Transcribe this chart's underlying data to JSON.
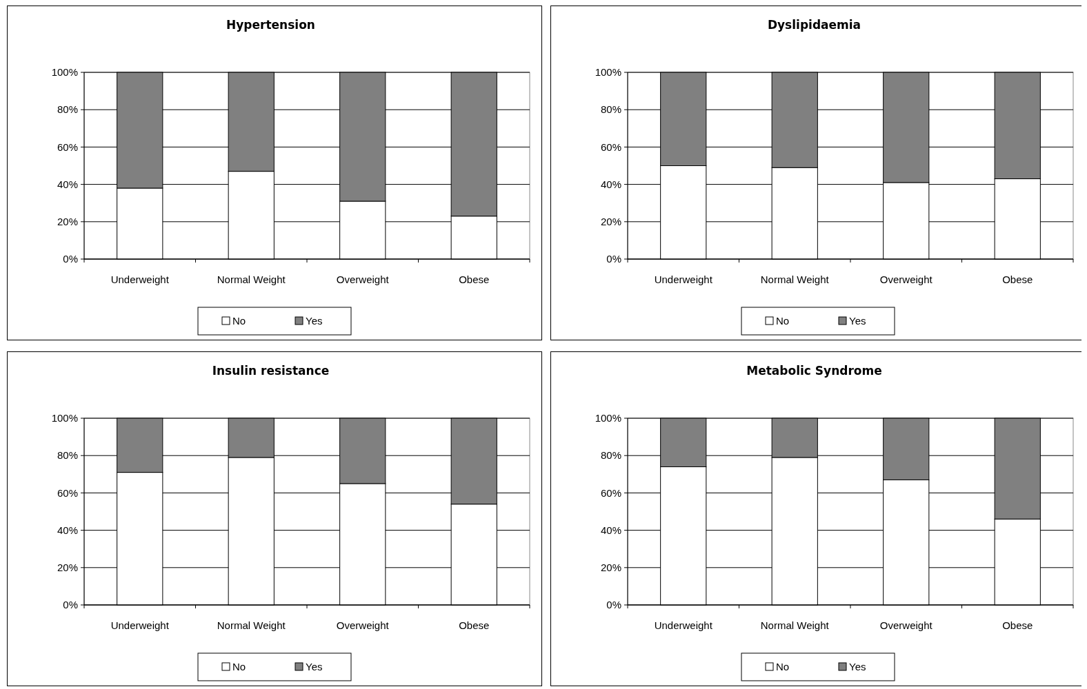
{
  "chart_data": [
    {
      "type": "bar",
      "title": "Hypertension",
      "categories": [
        "Underweight",
        "Normal Weight",
        "Overweight",
        "Obese"
      ],
      "stacked": true,
      "grid": "y",
      "legend": "bottom",
      "ylim": [
        0,
        100
      ],
      "yticks": [
        {
          "value": 0,
          "label": "0%"
        },
        {
          "value": 20,
          "label": "20%"
        },
        {
          "value": 40,
          "label": "40%"
        },
        {
          "value": 60,
          "label": "60%"
        },
        {
          "value": 80,
          "label": "80%"
        },
        {
          "value": 100,
          "label": "100%"
        }
      ],
      "series": [
        {
          "name": "No",
          "color": "#ffffff",
          "values": [
            38,
            47,
            31,
            23
          ]
        },
        {
          "name": "Yes",
          "color": "#808080",
          "values": [
            62,
            53,
            69,
            77
          ]
        }
      ]
    },
    {
      "type": "bar",
      "title": "Dyslipidaemia",
      "categories": [
        "Underweight",
        "Normal Weight",
        "Overweight",
        "Obese"
      ],
      "stacked": true,
      "grid": "y",
      "legend": "bottom",
      "ylim": [
        0,
        100
      ],
      "yticks": [
        {
          "value": 0,
          "label": "0%"
        },
        {
          "value": 20,
          "label": "20%"
        },
        {
          "value": 40,
          "label": "40%"
        },
        {
          "value": 60,
          "label": "60%"
        },
        {
          "value": 80,
          "label": "80%"
        },
        {
          "value": 100,
          "label": "100%"
        }
      ],
      "series": [
        {
          "name": "No",
          "color": "#ffffff",
          "values": [
            50,
            49,
            41,
            43
          ]
        },
        {
          "name": "Yes",
          "color": "#808080",
          "values": [
            50,
            51,
            59,
            57
          ]
        }
      ]
    },
    {
      "type": "bar",
      "title": "Insulin resistance",
      "categories": [
        "Underweight",
        "Normal Weight",
        "Overweight",
        "Obese"
      ],
      "stacked": true,
      "grid": "y",
      "legend": "bottom",
      "ylim": [
        0,
        100
      ],
      "yticks": [
        {
          "value": 0,
          "label": "0%"
        },
        {
          "value": 20,
          "label": "20%"
        },
        {
          "value": 40,
          "label": "40%"
        },
        {
          "value": 60,
          "label": "60%"
        },
        {
          "value": 80,
          "label": "80%"
        },
        {
          "value": 100,
          "label": "100%"
        }
      ],
      "series": [
        {
          "name": "No",
          "color": "#ffffff",
          "values": [
            71,
            79,
            65,
            54
          ]
        },
        {
          "name": "Yes",
          "color": "#808080",
          "values": [
            29,
            21,
            35,
            46
          ]
        }
      ]
    },
    {
      "type": "bar",
      "title": "Metabolic Syndrome",
      "categories": [
        "Underweight",
        "Normal Weight",
        "Overweight",
        "Obese"
      ],
      "stacked": true,
      "grid": "y",
      "legend": "bottom",
      "ylim": [
        0,
        100
      ],
      "yticks": [
        {
          "value": 0,
          "label": "0%"
        },
        {
          "value": 20,
          "label": "20%"
        },
        {
          "value": 40,
          "label": "40%"
        },
        {
          "value": 60,
          "label": "60%"
        },
        {
          "value": 80,
          "label": "80%"
        },
        {
          "value": 100,
          "label": "100%"
        }
      ],
      "series": [
        {
          "name": "No",
          "color": "#ffffff",
          "values": [
            74,
            79,
            67,
            46
          ]
        },
        {
          "name": "Yes",
          "color": "#808080",
          "values": [
            26,
            21,
            33,
            54
          ]
        }
      ]
    }
  ]
}
